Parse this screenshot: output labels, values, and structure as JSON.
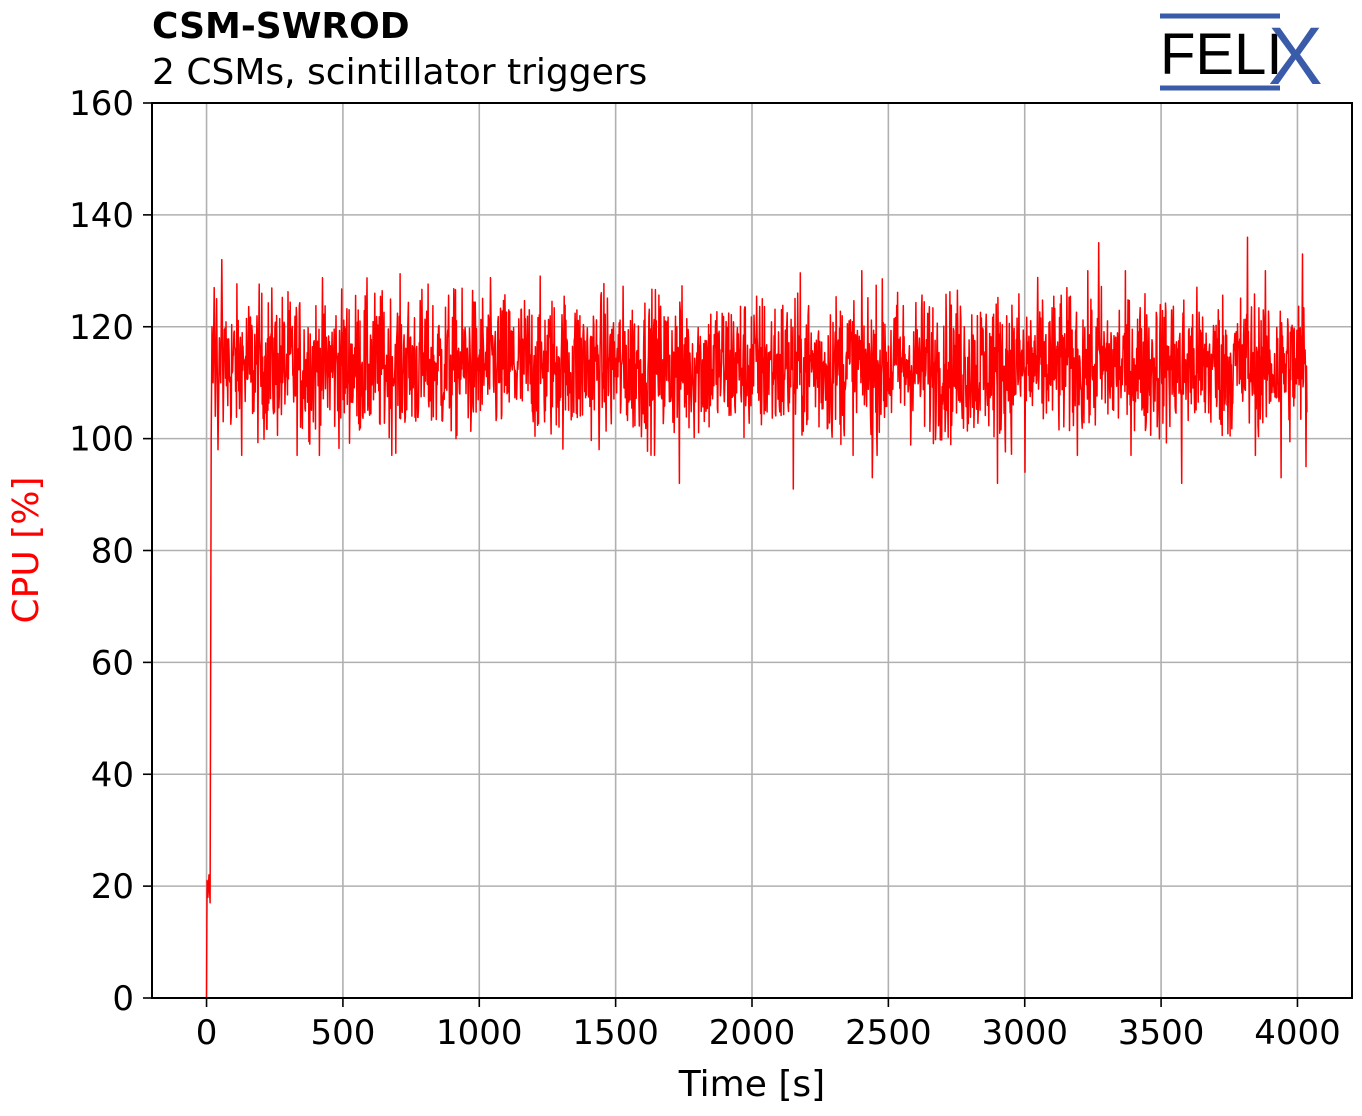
{
  "title": "CSM-SWROD",
  "subtitle": "2 CSMs, scintillator triggers",
  "logo": {
    "text": "FELI",
    "letter": "X",
    "color": "#3a5ba9"
  },
  "chart_data": {
    "type": "line",
    "xlabel": "Time [s]",
    "ylabel": "CPU [%]",
    "ylabel_color": "#ff0000",
    "xlim": [
      -200,
      4200
    ],
    "ylim": [
      0,
      160
    ],
    "xticks": [
      0,
      500,
      1000,
      1500,
      2000,
      2500,
      3000,
      3500,
      4000
    ],
    "yticks": [
      0,
      20,
      40,
      60,
      80,
      100,
      120,
      140,
      160
    ],
    "grid": true,
    "series": [
      {
        "color": "#ff0000",
        "points": [
          [
            0,
            0
          ],
          [
            2,
            21
          ],
          [
            5,
            18
          ],
          [
            9,
            22
          ],
          [
            13,
            17
          ],
          [
            17,
            100
          ],
          [
            20,
            120
          ],
          [
            24,
            110
          ],
          [
            28,
            127
          ],
          [
            32,
            104
          ],
          [
            37,
            125
          ],
          [
            42,
            98
          ],
          [
            47,
            118
          ],
          [
            52,
            110
          ],
          [
            56,
            132
          ],
          [
            61,
            103
          ],
          [
            1733,
            92
          ],
          [
            2150,
            91
          ],
          [
            2440,
            93
          ],
          [
            2900,
            92
          ],
          [
            3000,
            94
          ],
          [
            3270,
            135
          ],
          [
            3575,
            92
          ],
          [
            3816,
            136
          ],
          [
            3940,
            93
          ],
          [
            4018,
            133
          ],
          [
            4030,
            95
          ],
          [
            4035,
            104
          ]
        ],
        "baseline": {
          "x_start": 65,
          "x_end": 4035,
          "mean": 113,
          "typical_range": [
            100,
            126
          ]
        }
      }
    ]
  }
}
